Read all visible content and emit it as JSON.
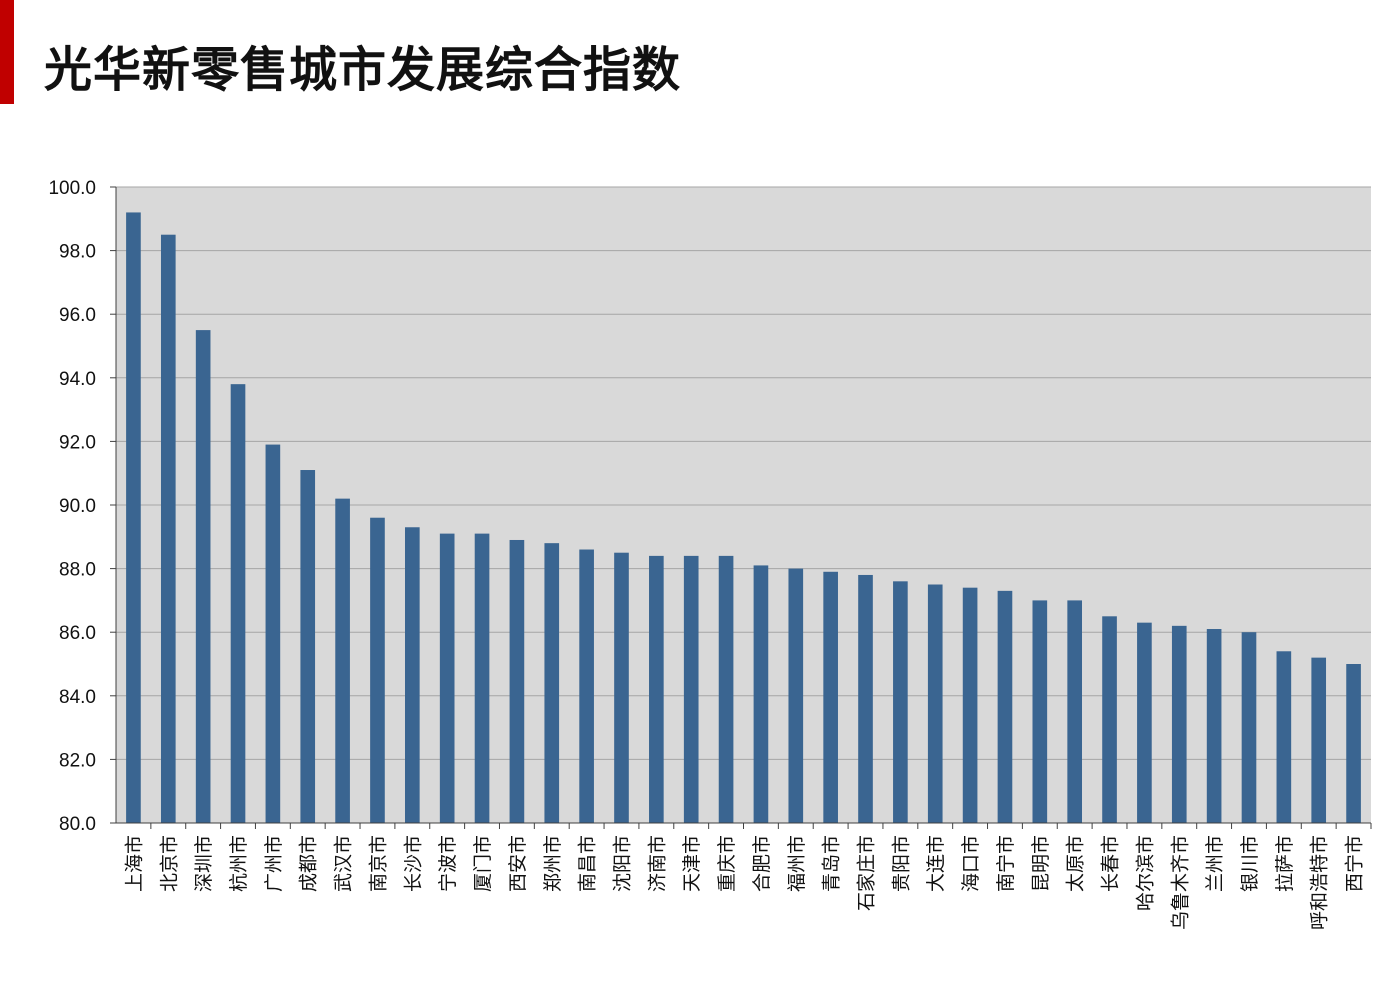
{
  "page": {
    "title": "光华新零售城市发展综合指数"
  },
  "colors": {
    "accent": "#c00000",
    "bar": "#3a6591",
    "plot_background": "#d9d9d9",
    "gridline": "#a6a6a6"
  },
  "chart_data": {
    "type": "bar",
    "title": "",
    "xlabel": "",
    "ylabel": "",
    "ylim": [
      80,
      100
    ],
    "y_ticks": [
      "80.0",
      "82.0",
      "84.0",
      "86.0",
      "88.0",
      "90.0",
      "92.0",
      "94.0",
      "96.0",
      "98.0",
      "100.0"
    ],
    "grid": true,
    "categories": [
      "上海市",
      "北京市",
      "深圳市",
      "杭州市",
      "广州市",
      "成都市",
      "武汉市",
      "南京市",
      "长沙市",
      "宁波市",
      "厦门市",
      "西安市",
      "郑州市",
      "南昌市",
      "沈阳市",
      "济南市",
      "天津市",
      "重庆市",
      "合肥市",
      "福州市",
      "青岛市",
      "石家庄市",
      "贵阳市",
      "大连市",
      "海口市",
      "南宁市",
      "昆明市",
      "太原市",
      "长春市",
      "哈尔滨市",
      "乌鲁木齐市",
      "兰州市",
      "银川市",
      "拉萨市",
      "呼和浩特市",
      "西宁市"
    ],
    "values": [
      99.2,
      98.5,
      95.5,
      93.8,
      91.9,
      91.1,
      90.2,
      89.6,
      89.3,
      89.1,
      89.1,
      88.9,
      88.8,
      88.6,
      88.5,
      88.4,
      88.4,
      88.4,
      88.1,
      88.0,
      87.9,
      87.8,
      87.6,
      87.5,
      87.4,
      87.3,
      87.0,
      87.0,
      86.5,
      86.3,
      86.2,
      86.1,
      86.0,
      85.4,
      85.2,
      85.0
    ]
  }
}
